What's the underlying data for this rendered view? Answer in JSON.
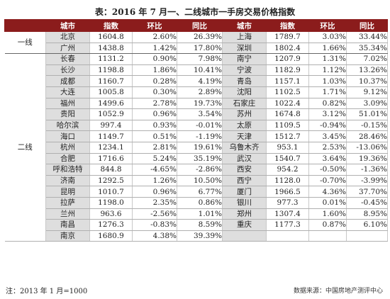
{
  "title": "表：2016 年 7 月一、二线城市一手房交易价格指数",
  "headers": [
    "城市",
    "指数",
    "环比",
    "同比",
    "城市",
    "指数",
    "环比",
    "同比"
  ],
  "tier1_label": "一线",
  "tier2_label": "二线",
  "tier1": [
    {
      "c1": "北京",
      "i1": "1604.8",
      "m1": "2.60%",
      "y1": "26.39%",
      "c2": "上海",
      "i2": "1789.7",
      "m2": "3.03%",
      "y2": "33.44%"
    },
    {
      "c1": "广州",
      "i1": "1438.8",
      "m1": "1.42%",
      "y1": "17.80%",
      "c2": "深圳",
      "i2": "1802.4",
      "m2": "1.66%",
      "y2": "35.34%"
    }
  ],
  "tier2": [
    {
      "c1": "长春",
      "i1": "1131.2",
      "m1": "0.90%",
      "y1": "7.98%",
      "c2": "南宁",
      "i2": "1207.9",
      "m2": "1.31%",
      "y2": "7.02%"
    },
    {
      "c1": "长沙",
      "i1": "1198.8",
      "m1": "1.86%",
      "y1": "10.41%",
      "c2": "宁波",
      "i2": "1182.9",
      "m2": "1.12%",
      "y2": "13.26%"
    },
    {
      "c1": "成都",
      "i1": "1160.7",
      "m1": "0.28%",
      "y1": "4.19%",
      "c2": "青岛",
      "i2": "1157.1",
      "m2": "1.03%",
      "y2": "10.37%"
    },
    {
      "c1": "大连",
      "i1": "1005.8",
      "m1": "0.30%",
      "y1": "2.89%",
      "c2": "沈阳",
      "i2": "1102.5",
      "m2": "1.71%",
      "y2": "9.12%"
    },
    {
      "c1": "福州",
      "i1": "1499.6",
      "m1": "2.78%",
      "y1": "19.73%",
      "c2": "石家庄",
      "i2": "1022.4",
      "m2": "0.82%",
      "y2": "3.09%"
    },
    {
      "c1": "贵阳",
      "i1": "1052.9",
      "m1": "0.96%",
      "y1": "3.54%",
      "c2": "苏州",
      "i2": "1674.8",
      "m2": "3.12%",
      "y2": "51.01%"
    },
    {
      "c1": "哈尔滨",
      "i1": "997.4",
      "m1": "0.93%",
      "y1": "-0.01%",
      "c2": "太原",
      "i2": "1109.5",
      "m2": "-0.94%",
      "y2": "-0.15%"
    },
    {
      "c1": "海口",
      "i1": "1149.7",
      "m1": "0.51%",
      "y1": "-1.19%",
      "c2": "天津",
      "i2": "1512.7",
      "m2": "3.45%",
      "y2": "28.46%"
    },
    {
      "c1": "杭州",
      "i1": "1234.1",
      "m1": "2.81%",
      "y1": "19.61%",
      "c2": "乌鲁木齐",
      "i2": "953.1",
      "m2": "2.53%",
      "y2": "-13.06%"
    },
    {
      "c1": "合肥",
      "i1": "1716.6",
      "m1": "5.24%",
      "y1": "35.19%",
      "c2": "武汉",
      "i2": "1540.7",
      "m2": "3.64%",
      "y2": "19.36%"
    },
    {
      "c1": "呼和浩特",
      "i1": "844.8",
      "m1": "-4.65%",
      "y1": "-2.86%",
      "c2": "西安",
      "i2": "954.2",
      "m2": "-0.50%",
      "y2": "-1.36%"
    },
    {
      "c1": "济南",
      "i1": "1292.5",
      "m1": "1.26%",
      "y1": "10.50%",
      "c2": "西宁",
      "i2": "1128.0",
      "m2": "-0.70%",
      "y2": "-3.99%"
    },
    {
      "c1": "昆明",
      "i1": "1010.7",
      "m1": "0.96%",
      "y1": "6.77%",
      "c2": "厦门",
      "i2": "1966.5",
      "m2": "4.36%",
      "y2": "37.70%"
    },
    {
      "c1": "拉萨",
      "i1": "1198.0",
      "m1": "2.35%",
      "y1": "0.86%",
      "c2": "银川",
      "i2": "977.3",
      "m2": "0.01%",
      "y2": "-0.45%"
    },
    {
      "c1": "兰州",
      "i1": "963.6",
      "m1": "-2.56%",
      "y1": "1.01%",
      "c2": "郑州",
      "i2": "1307.4",
      "m2": "1.60%",
      "y2": "8.95%"
    },
    {
      "c1": "南昌",
      "i1": "1276.3",
      "m1": "-0.83%",
      "y1": "8.59%",
      "c2": "重庆",
      "i2": "1177.3",
      "m2": "0.87%",
      "y2": "6.10%"
    },
    {
      "c1": "南京",
      "i1": "1680.9",
      "m1": "4.38%",
      "y1": "39.39%",
      "c2": "",
      "i2": "",
      "m2": "",
      "y2": ""
    }
  ],
  "footnote": "注：2013 年 1 月=1000",
  "source": "数据来源：中国房地产测评中心"
}
